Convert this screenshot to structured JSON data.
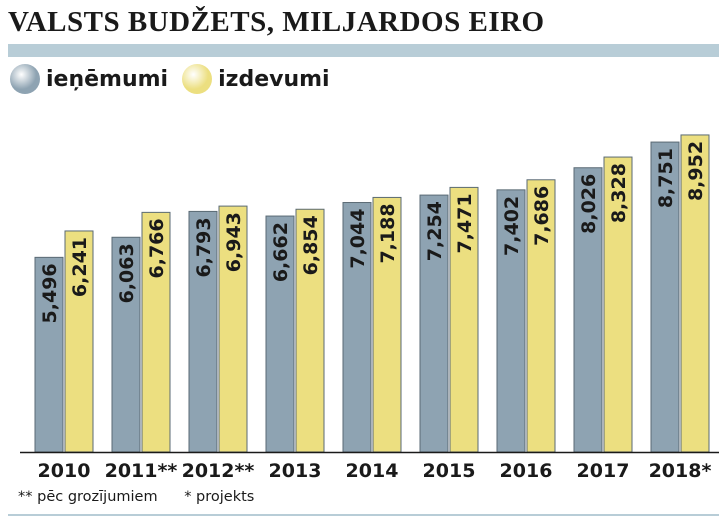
{
  "chart_data": {
    "type": "bar",
    "title": "VALSTS BUDŽETS, MILJARDOS EIRO",
    "categories": [
      "2010",
      "2011**",
      "2012**",
      "2013",
      "2014",
      "2015",
      "2016",
      "2017",
      "2018*"
    ],
    "series": [
      {
        "name": "ieņēmumi",
        "values": [
          5.496,
          6.063,
          6.793,
          6.662,
          7.044,
          7.254,
          7.402,
          8.026,
          8.751
        ],
        "labels": [
          "5,496",
          "6,063",
          "6,793",
          "6,662",
          "7,044",
          "7,254",
          "7,402",
          "8,026",
          "8,751"
        ],
        "color": "#8ea3b2"
      },
      {
        "name": "izdevumi",
        "values": [
          6.241,
          6.766,
          6.943,
          6.854,
          7.188,
          7.471,
          7.686,
          8.328,
          8.952
        ],
        "labels": [
          "6,241",
          "6,766",
          "6,943",
          "6,854",
          "7,188",
          "7,471",
          "7,686",
          "8,328",
          "8,952"
        ],
        "color": "#ecdf80"
      }
    ],
    "ylim": [
      0,
      9.6
    ],
    "grid": false,
    "legend": "top-left",
    "bar_edge_color": "#5a6a74"
  },
  "footnotes": {
    "note_double": "** pēc grozījumiem",
    "note_single": "* projekts"
  }
}
